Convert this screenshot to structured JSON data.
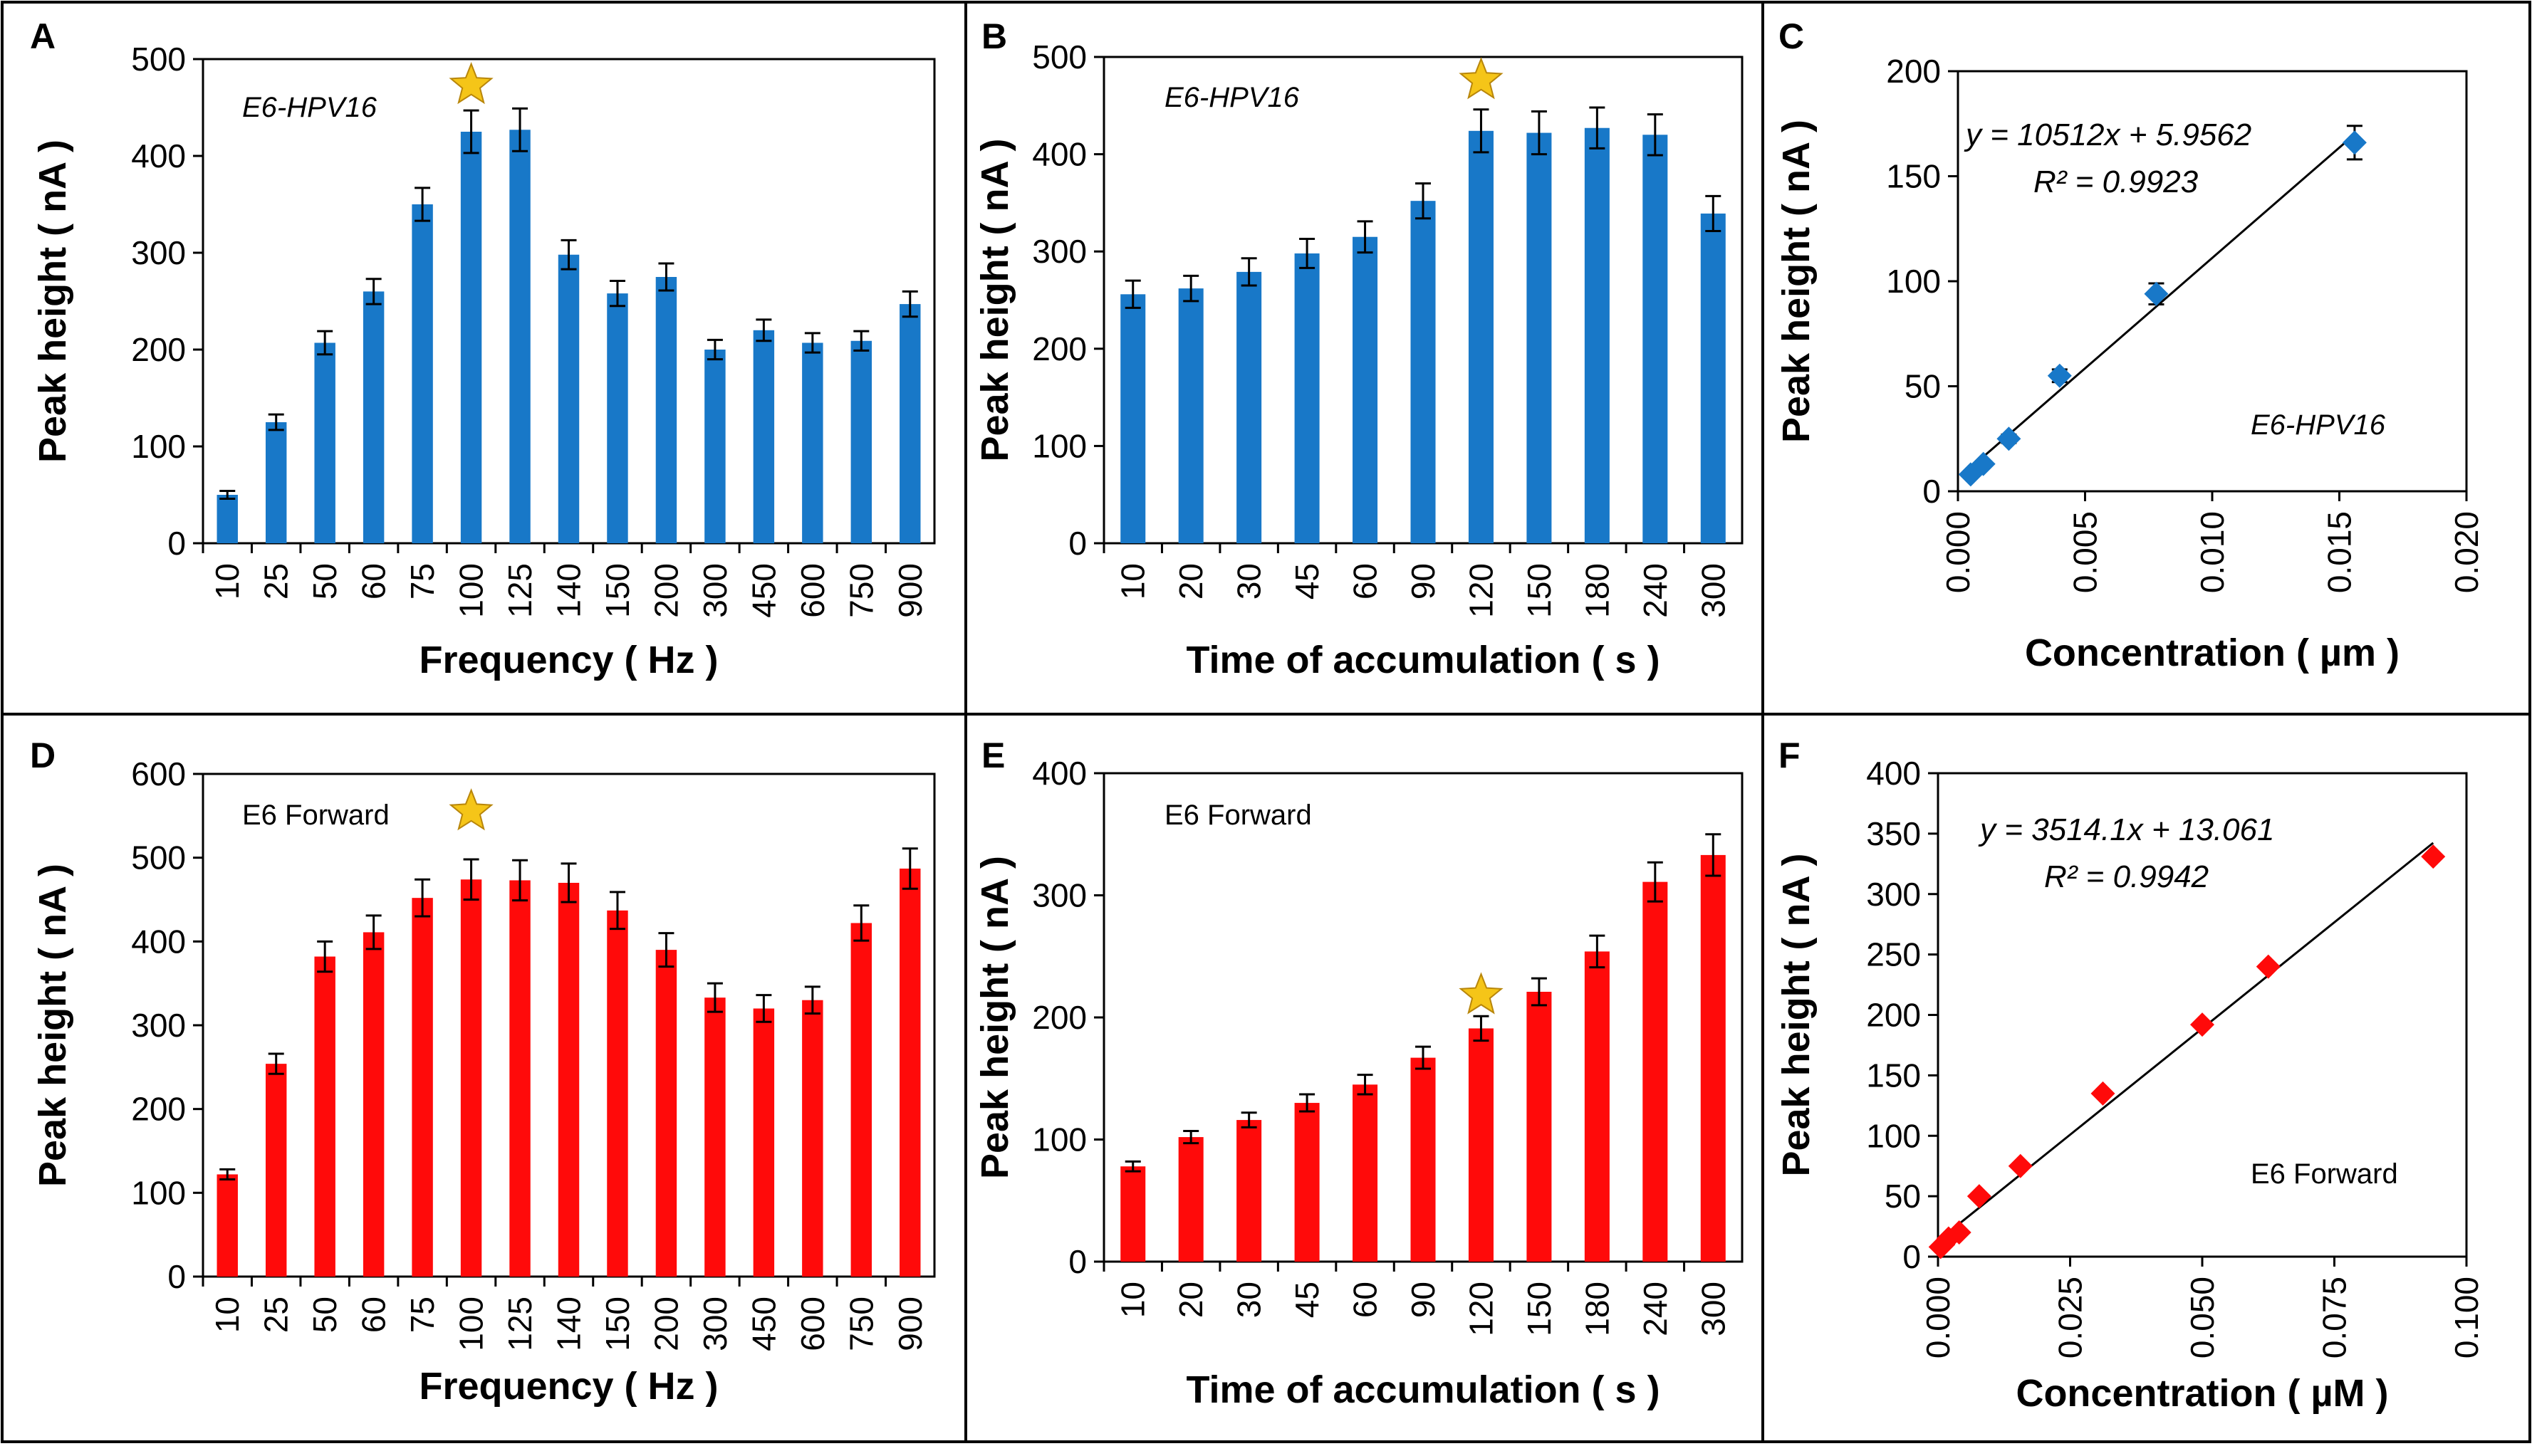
{
  "figure": {
    "star_color": "#F5C518",
    "blue": "#1878C8",
    "red": "#FF0A0A"
  },
  "chart_data": [
    {
      "type": "bar",
      "panel": "A",
      "series_color": "#1878C8",
      "categories": [
        "10",
        "25",
        "50",
        "60",
        "75",
        "100",
        "125",
        "140",
        "150",
        "200",
        "300",
        "450",
        "600",
        "750",
        "900"
      ],
      "values": [
        50,
        125,
        207,
        260,
        350,
        425,
        427,
        298,
        258,
        275,
        200,
        220,
        207,
        209,
        247
      ],
      "errors": [
        4,
        8,
        12,
        13,
        17,
        22,
        22,
        15,
        13,
        14,
        10,
        11,
        10,
        10,
        13
      ],
      "xlabel": "Frequency ( Hz )",
      "ylabel": "Peak height ( nA )",
      "ylim": [
        0,
        500
      ],
      "yticks": [
        0,
        100,
        200,
        300,
        400,
        500
      ],
      "annotation": "E6-HPV16",
      "annotation_style": "italic",
      "star_category": "100",
      "star_value": 473
    },
    {
      "type": "bar",
      "panel": "B",
      "series_color": "#1878C8",
      "categories": [
        "10",
        "20",
        "30",
        "45",
        "60",
        "90",
        "120",
        "150",
        "180",
        "240",
        "300"
      ],
      "values": [
        256,
        262,
        279,
        298,
        315,
        352,
        424,
        422,
        427,
        420,
        339
      ],
      "errors": [
        14,
        13,
        14,
        15,
        16,
        18,
        22,
        22,
        21,
        21,
        18
      ],
      "xlabel": "Time of accumulation ( s )",
      "ylabel": "Peak height ( nA )",
      "ylim": [
        0,
        500
      ],
      "yticks": [
        0,
        100,
        200,
        300,
        400,
        500
      ],
      "annotation": "E6-HPV16",
      "annotation_style": "italic",
      "star_category": "120",
      "star_value": 476
    },
    {
      "type": "scatter",
      "panel": "C",
      "series_color": "#1878C8",
      "marker": "diamond",
      "x": [
        0.0005,
        0.001,
        0.002,
        0.004,
        0.0078,
        0.0156
      ],
      "y": [
        8,
        13,
        25,
        55,
        94,
        166
      ],
      "errors": [
        1,
        1,
        2,
        3,
        5,
        8
      ],
      "fit": {
        "slope": 10512,
        "intercept": 5.9562
      },
      "equation": "y = 10512x + 5.9562",
      "r2": "R² = 0.9923",
      "xlabel": "Concentration ( µm )",
      "ylabel": "Peak height ( nA )",
      "xlim": [
        0,
        0.02
      ],
      "ylim": [
        0,
        200
      ],
      "xticks": [
        "0.000",
        "0.005",
        "0.010",
        "0.015",
        "0.020"
      ],
      "yticks": [
        0,
        50,
        100,
        150,
        200
      ],
      "annotation": "E6-HPV16",
      "annotation_style": "italic"
    },
    {
      "type": "bar",
      "panel": "D",
      "series_color": "#FF0A0A",
      "categories": [
        "10",
        "25",
        "50",
        "60",
        "75",
        "100",
        "125",
        "140",
        "150",
        "200",
        "300",
        "450",
        "600",
        "750",
        "900"
      ],
      "values": [
        122,
        254,
        382,
        411,
        452,
        474,
        473,
        470,
        437,
        390,
        333,
        320,
        330,
        422,
        487
      ],
      "errors": [
        6,
        12,
        18,
        20,
        22,
        24,
        24,
        23,
        22,
        20,
        17,
        16,
        16,
        21,
        24
      ],
      "xlabel": "Frequency ( Hz )",
      "ylabel": "Peak height ( nA )",
      "ylim": [
        0,
        600
      ],
      "yticks": [
        0,
        100,
        200,
        300,
        400,
        500,
        600
      ],
      "annotation": "E6 Forward",
      "annotation_style": "plain",
      "star_category": "100",
      "star_value": 555
    },
    {
      "type": "bar",
      "panel": "E",
      "series_color": "#FF0A0A",
      "categories": [
        "10",
        "20",
        "30",
        "45",
        "60",
        "90",
        "120",
        "150",
        "180",
        "240",
        "300"
      ],
      "values": [
        78,
        102,
        116,
        130,
        145,
        167,
        191,
        221,
        254,
        311,
        333
      ],
      "errors": [
        4,
        5,
        6,
        7,
        8,
        9,
        10,
        11,
        13,
        16,
        17
      ],
      "xlabel": "Time of accumulation ( s )",
      "ylabel": "Peak height ( nA )",
      "ylim": [
        0,
        400
      ],
      "yticks": [
        0,
        100,
        200,
        300,
        400
      ],
      "annotation": "E6 Forward",
      "annotation_style": "plain",
      "star_category": "120",
      "star_value": 218
    },
    {
      "type": "scatter",
      "panel": "F",
      "series_color": "#FF0A0A",
      "marker": "diamond",
      "x": [
        0.0005,
        0.001,
        0.002,
        0.004,
        0.0078,
        0.0156,
        0.0312,
        0.05,
        0.0625,
        0.0937
      ],
      "y": [
        8,
        10,
        15,
        20,
        50,
        75,
        135,
        192,
        240,
        331
      ],
      "errors": [],
      "fit": {
        "slope": 3514.1,
        "intercept": 13.061
      },
      "equation": "y = 3514.1x + 13.061",
      "r2": "R² = 0.9942",
      "xlabel": "Concentration ( µM )",
      "ylabel": "Peak height ( nA )",
      "xlim": [
        0,
        0.1
      ],
      "ylim": [
        0,
        400
      ],
      "xticks": [
        "0.000",
        "0.025",
        "0.050",
        "0.075",
        "0.100"
      ],
      "yticks": [
        0,
        50,
        100,
        150,
        200,
        250,
        300,
        350,
        400
      ],
      "annotation": "E6 Forward",
      "annotation_style": "plain"
    }
  ]
}
